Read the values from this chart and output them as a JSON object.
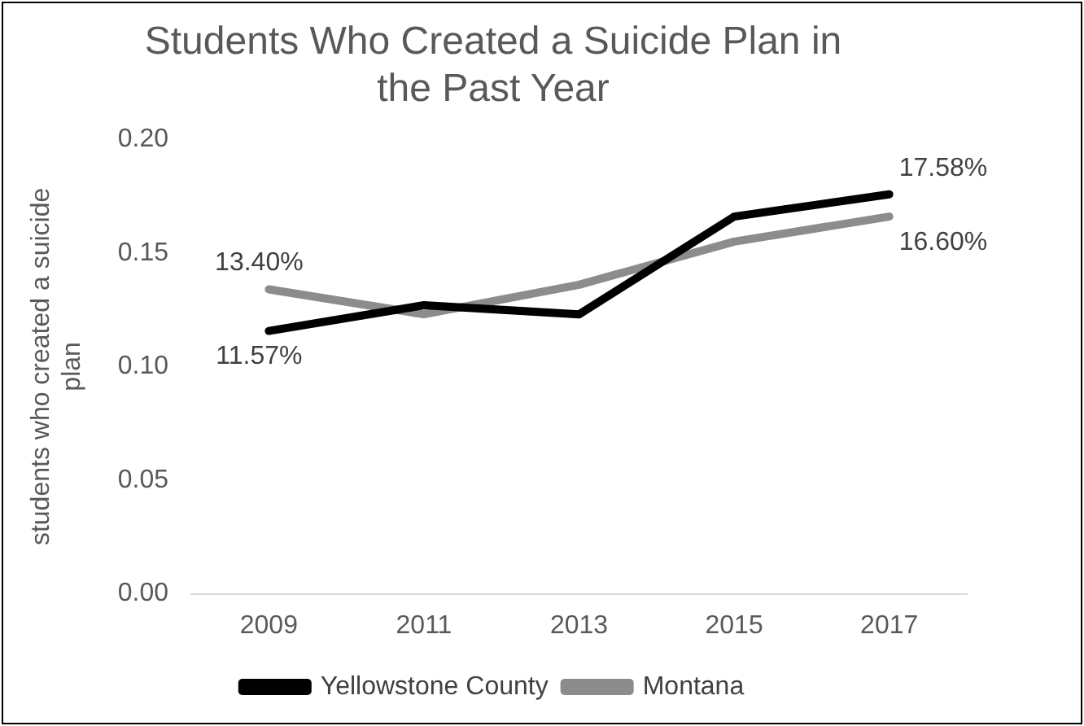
{
  "chart_data": {
    "type": "line",
    "title": "Students Who Created a Suicide Plan in the Past Year",
    "ylabel": "students who created a suicide plan",
    "categories": [
      "2009",
      "2011",
      "2013",
      "2015",
      "2017"
    ],
    "series": [
      {
        "name": "Yellowstone County",
        "color": "#000000",
        "values": [
          0.1157,
          0.127,
          0.123,
          0.166,
          0.1758
        ],
        "value_labels": [
          "11.57%",
          null,
          null,
          null,
          "17.58%"
        ]
      },
      {
        "name": "Montana",
        "color": "#8c8c8c",
        "values": [
          0.134,
          0.123,
          0.136,
          0.155,
          0.166
        ],
        "value_labels": [
          "13.40%",
          null,
          null,
          null,
          "16.60%"
        ]
      }
    ],
    "ylim": [
      0,
      0.2
    ],
    "yticks": [
      {
        "value": 0,
        "label": "0.00"
      },
      {
        "value": 0.05,
        "label": "0.05"
      },
      {
        "value": 0.1,
        "label": "0.10"
      },
      {
        "value": 0.15,
        "label": "0.15"
      },
      {
        "value": 0.2,
        "label": "0.20"
      }
    ],
    "grid": false,
    "legend": "bottom",
    "marker": "none",
    "line_style": "solid"
  }
}
